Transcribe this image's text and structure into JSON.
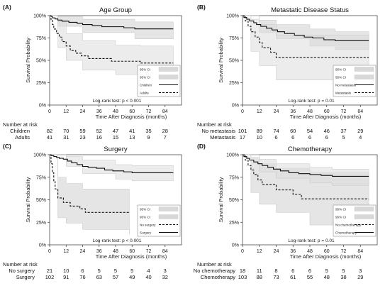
{
  "chart_data": [
    {
      "type": "line",
      "panel_label": "(A)",
      "title": "Age Group",
      "xlabel": "Time After Diagnosis (months)",
      "ylabel": "Survival Probability",
      "x_ticks": [
        0,
        12,
        24,
        36,
        48,
        60,
        72,
        84
      ],
      "y_ticks": [
        "0%",
        "25%",
        "50%",
        "75%",
        "100%"
      ],
      "xlim": [
        0,
        96
      ],
      "ylim": [
        0,
        1
      ],
      "grid": false,
      "legend_position": "bottom-right",
      "ci_label": "95% CI",
      "logrank": "Log-rank test: p < 0.001",
      "risk_header": "Number at risk",
      "series": [
        {
          "name": "Children",
          "style": "solid",
          "steps": [
            [
              0,
              1
            ],
            [
              1,
              0.99
            ],
            [
              2,
              0.975
            ],
            [
              4,
              0.963
            ],
            [
              6,
              0.95
            ],
            [
              9,
              0.938
            ],
            [
              14,
              0.925
            ],
            [
              20,
              0.913
            ],
            [
              24,
              0.9
            ],
            [
              31,
              0.888
            ],
            [
              38,
              0.876
            ],
            [
              54,
              0.864
            ],
            [
              62,
              0.852
            ],
            [
              90,
              0.852
            ]
          ],
          "ci_upper": [
            [
              0,
              1
            ],
            [
              6,
              0.99
            ],
            [
              24,
              0.96
            ],
            [
              62,
              0.93
            ],
            [
              90,
              0.93
            ]
          ],
          "ci_lower": [
            [
              0,
              1
            ],
            [
              6,
              0.88
            ],
            [
              24,
              0.81
            ],
            [
              62,
              0.74
            ],
            [
              90,
              0.74
            ]
          ],
          "risk": [
            82,
            70,
            59,
            52,
            47,
            41,
            35,
            28
          ]
        },
        {
          "name": "Adults",
          "style": "dashed",
          "steps": [
            [
              0,
              1
            ],
            [
              1,
              0.95
            ],
            [
              2,
              0.9
            ],
            [
              3,
              0.85
            ],
            [
              5,
              0.8
            ],
            [
              7,
              0.76
            ],
            [
              9,
              0.71
            ],
            [
              12,
              0.66
            ],
            [
              15,
              0.61
            ],
            [
              19,
              0.58
            ],
            [
              23,
              0.55
            ],
            [
              28,
              0.52
            ],
            [
              45,
              0.49
            ],
            [
              65,
              0.49
            ],
            [
              66,
              0.47
            ],
            [
              90,
              0.47
            ]
          ],
          "ci_upper": [
            [
              0,
              1
            ],
            [
              6,
              0.93
            ],
            [
              12,
              0.8
            ],
            [
              24,
              0.72
            ],
            [
              48,
              0.67
            ],
            [
              66,
              0.66
            ],
            [
              90,
              0.66
            ]
          ],
          "ci_lower": [
            [
              0,
              1
            ],
            [
              6,
              0.64
            ],
            [
              12,
              0.5
            ],
            [
              24,
              0.39
            ],
            [
              48,
              0.34
            ],
            [
              66,
              0.32
            ],
            [
              90,
              0.32
            ]
          ],
          "risk": [
            41,
            31,
            23,
            16,
            15,
            13,
            9,
            7
          ]
        }
      ]
    },
    {
      "type": "line",
      "panel_label": "(B)",
      "title": "Metastatic Disease Status",
      "xlabel": "Time After Diagnosis (months)",
      "ylabel": "Survival Probability",
      "x_ticks": [
        0,
        12,
        24,
        36,
        48,
        60,
        72,
        84
      ],
      "y_ticks": [
        "0%",
        "25%",
        "50%",
        "75%",
        "100%"
      ],
      "xlim": [
        0,
        96
      ],
      "ylim": [
        0,
        1
      ],
      "grid": false,
      "legend_position": "bottom-right",
      "ci_label": "95% CI",
      "logrank": "Log-rank test: p = 0.01",
      "risk_header": "Number at risk",
      "series": [
        {
          "name": "No metastasis",
          "style": "solid",
          "steps": [
            [
              0,
              1
            ],
            [
              1,
              0.98
            ],
            [
              3,
              0.96
            ],
            [
              5,
              0.94
            ],
            [
              8,
              0.92
            ],
            [
              10,
              0.9
            ],
            [
              13,
              0.88
            ],
            [
              17,
              0.86
            ],
            [
              21,
              0.84
            ],
            [
              25,
              0.82
            ],
            [
              30,
              0.8
            ],
            [
              37,
              0.78
            ],
            [
              44,
              0.76
            ],
            [
              50,
              0.75
            ],
            [
              58,
              0.73
            ],
            [
              66,
              0.72
            ],
            [
              90,
              0.72
            ]
          ],
          "ci_upper": [
            [
              0,
              1
            ],
            [
              12,
              0.95
            ],
            [
              24,
              0.9
            ],
            [
              48,
              0.85
            ],
            [
              66,
              0.82
            ],
            [
              90,
              0.82
            ]
          ],
          "ci_lower": [
            [
              0,
              1
            ],
            [
              12,
              0.81
            ],
            [
              24,
              0.74
            ],
            [
              48,
              0.66
            ],
            [
              66,
              0.62
            ],
            [
              90,
              0.62
            ]
          ],
          "risk": [
            101,
            89,
            74,
            60,
            54,
            46,
            37,
            29
          ]
        },
        {
          "name": "Metastasis",
          "style": "dashed",
          "steps": [
            [
              0,
              1
            ],
            [
              2,
              0.94
            ],
            [
              4,
              0.88
            ],
            [
              6,
              0.82
            ],
            [
              9,
              0.76
            ],
            [
              12,
              0.7
            ],
            [
              14,
              0.64
            ],
            [
              20,
              0.59
            ],
            [
              24,
              0.53
            ],
            [
              90,
              0.53
            ]
          ],
          "ci_upper": [
            [
              0,
              1
            ],
            [
              6,
              0.96
            ],
            [
              12,
              0.9
            ],
            [
              24,
              0.78
            ],
            [
              90,
              0.78
            ]
          ],
          "ci_lower": [
            [
              0,
              1
            ],
            [
              6,
              0.6
            ],
            [
              12,
              0.44
            ],
            [
              24,
              0.28
            ],
            [
              90,
              0.28
            ]
          ],
          "risk": [
            17,
            10,
            6,
            6,
            6,
            6,
            5,
            4
          ]
        }
      ]
    },
    {
      "type": "line",
      "panel_label": "(C)",
      "title": "Surgery",
      "xlabel": "Time After Diagnosis (months)",
      "ylabel": "Survival Probability",
      "x_ticks": [
        0,
        12,
        24,
        36,
        48,
        60,
        72,
        84
      ],
      "y_ticks": [
        "0%",
        "25%",
        "50%",
        "75%",
        "100%"
      ],
      "xlim": [
        0,
        96
      ],
      "ylim": [
        0,
        1
      ],
      "grid": false,
      "legend_position": "bottom-right",
      "ci_label": "95% CI",
      "logrank": "Log-rank test: p < 0.001",
      "risk_header": "Number at risk",
      "series": [
        {
          "name": "No surgery",
          "style": "dashed",
          "steps": [
            [
              0,
              1
            ],
            [
              1,
              0.9
            ],
            [
              2,
              0.8
            ],
            [
              3,
              0.71
            ],
            [
              4,
              0.62
            ],
            [
              6,
              0.52
            ],
            [
              10,
              0.47
            ],
            [
              15,
              0.43
            ],
            [
              22,
              0.4
            ],
            [
              26,
              0.36
            ],
            [
              58,
              0.36
            ]
          ],
          "ci_upper": [
            [
              0,
              1
            ],
            [
              6,
              0.75
            ],
            [
              12,
              0.68
            ],
            [
              24,
              0.62
            ],
            [
              58,
              0.58
            ]
          ],
          "ci_lower": [
            [
              0,
              1
            ],
            [
              6,
              0.3
            ],
            [
              12,
              0.24
            ],
            [
              24,
              0.17
            ],
            [
              58,
              0.12
            ]
          ],
          "risk": [
            21,
            10,
            6,
            5,
            5,
            5,
            4,
            3
          ]
        },
        {
          "name": "Surgery",
          "style": "solid",
          "steps": [
            [
              0,
              1
            ],
            [
              1,
              0.99
            ],
            [
              3,
              0.98
            ],
            [
              5,
              0.97
            ],
            [
              7,
              0.96
            ],
            [
              10,
              0.95
            ],
            [
              13,
              0.93
            ],
            [
              16,
              0.91
            ],
            [
              20,
              0.89
            ],
            [
              24,
              0.87
            ],
            [
              28,
              0.86
            ],
            [
              34,
              0.85
            ],
            [
              40,
              0.83
            ],
            [
              46,
              0.82
            ],
            [
              54,
              0.81
            ],
            [
              60,
              0.8
            ],
            [
              90,
              0.8
            ]
          ],
          "ci_upper": [
            [
              0,
              1
            ],
            [
              12,
              0.98
            ],
            [
              24,
              0.94
            ],
            [
              48,
              0.89
            ],
            [
              60,
              0.88
            ],
            [
              90,
              0.88
            ]
          ],
          "ci_lower": [
            [
              0,
              1
            ],
            [
              12,
              0.87
            ],
            [
              24,
              0.79
            ],
            [
              48,
              0.73
            ],
            [
              60,
              0.71
            ],
            [
              90,
              0.71
            ]
          ],
          "risk": [
            102,
            91,
            76,
            63,
            57,
            49,
            40,
            32
          ]
        }
      ]
    },
    {
      "type": "line",
      "panel_label": "(D)",
      "title": "Chemotherapy",
      "xlabel": "Time After Diagnosis (months)",
      "ylabel": "Survival Probability",
      "x_ticks": [
        0,
        12,
        24,
        36,
        48,
        60,
        72,
        84
      ],
      "y_ticks": [
        "0%",
        "25%",
        "50%",
        "75%",
        "100%"
      ],
      "xlim": [
        0,
        96
      ],
      "ylim": [
        0,
        1
      ],
      "grid": false,
      "legend_position": "bottom-right",
      "ci_label": "95% CI",
      "logrank": "Log-rank test: p = 0.01",
      "risk_header": "Number at risk",
      "series": [
        {
          "name": "No chemotherapy",
          "style": "dashed",
          "steps": [
            [
              0,
              1
            ],
            [
              2,
              0.94
            ],
            [
              4,
              0.88
            ],
            [
              6,
              0.83
            ],
            [
              8,
              0.78
            ],
            [
              11,
              0.72
            ],
            [
              14,
              0.67
            ],
            [
              24,
              0.61
            ],
            [
              36,
              0.56
            ],
            [
              42,
              0.51
            ],
            [
              90,
              0.51
            ]
          ],
          "ci_upper": [
            [
              0,
              1
            ],
            [
              6,
              0.97
            ],
            [
              12,
              0.9
            ],
            [
              24,
              0.85
            ],
            [
              48,
              0.8
            ],
            [
              90,
              0.8
            ]
          ],
          "ci_lower": [
            [
              0,
              1
            ],
            [
              6,
              0.58
            ],
            [
              12,
              0.45
            ],
            [
              24,
              0.36
            ],
            [
              48,
              0.22
            ],
            [
              90,
              0.22
            ]
          ],
          "risk": [
            18,
            11,
            8,
            6,
            6,
            5,
            5,
            3
          ]
        },
        {
          "name": "Chemotherapy",
          "style": "solid",
          "steps": [
            [
              0,
              1
            ],
            [
              1,
              0.98
            ],
            [
              3,
              0.96
            ],
            [
              5,
              0.94
            ],
            [
              8,
              0.92
            ],
            [
              11,
              0.9
            ],
            [
              14,
              0.88
            ],
            [
              18,
              0.86
            ],
            [
              22,
              0.84
            ],
            [
              27,
              0.82
            ],
            [
              33,
              0.8
            ],
            [
              40,
              0.79
            ],
            [
              48,
              0.78
            ],
            [
              56,
              0.77
            ],
            [
              64,
              0.76
            ],
            [
              90,
              0.76
            ]
          ],
          "ci_upper": [
            [
              0,
              1
            ],
            [
              12,
              0.95
            ],
            [
              24,
              0.9
            ],
            [
              48,
              0.86
            ],
            [
              64,
              0.84
            ],
            [
              90,
              0.84
            ]
          ],
          "ci_lower": [
            [
              0,
              1
            ],
            [
              12,
              0.81
            ],
            [
              24,
              0.74
            ],
            [
              48,
              0.69
            ],
            [
              64,
              0.66
            ],
            [
              90,
              0.66
            ]
          ],
          "risk": [
            103,
            88,
            73,
            61,
            55,
            48,
            38,
            29
          ]
        }
      ]
    }
  ]
}
